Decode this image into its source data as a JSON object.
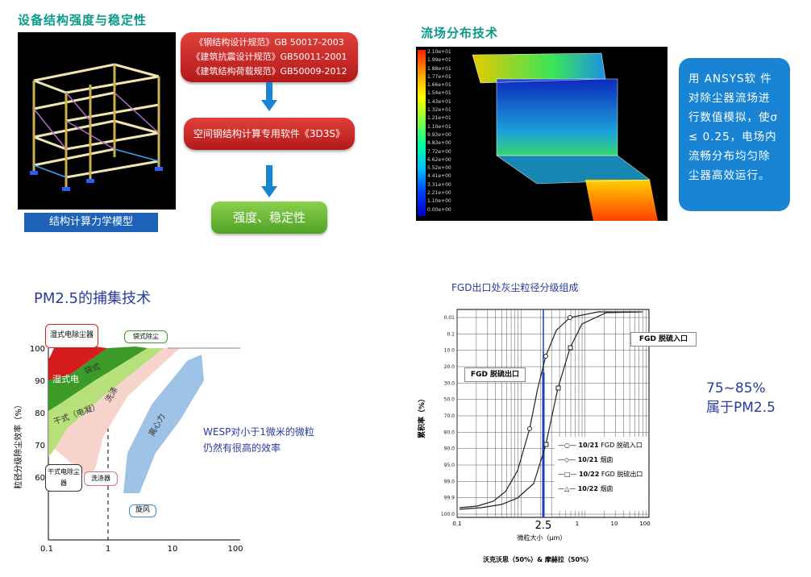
{
  "structure": {
    "title": "设备结构强度与稳定性",
    "model_caption": "结构计算力学模型",
    "codes": [
      "《钢结构设计规范》GB 50017-2003",
      "《建筑抗震设计规范》GB50011-2001",
      "《建筑结构荷载规范》GB50009-2012"
    ],
    "software": "空间钢结构计算专用软件《3D3S》",
    "result": "强度、稳定性"
  },
  "flow": {
    "title": "流场分布技术",
    "description": "用 ANSYS软 件对除尘器流场进行数值模拟，使σ ≤ 0.25，电场内流畅分布均匀除尘器高效运行。",
    "colorbar": [
      "2.10e+01",
      "1.99e+01",
      "1.88e+01",
      "1.77e+01",
      "1.66e+01",
      "1.54e+01",
      "1.43e+01",
      "1.32e+01",
      "1.21e+01",
      "1.10e+01",
      "9.93e+00",
      "8.83e+00",
      "7.72e+00",
      "6.62e+00",
      "5.52e+00",
      "4.41e+00",
      "3.31e+00",
      "2.21e+00",
      "1.10e+00",
      "0.00e+00"
    ]
  },
  "pm": {
    "title": "PM2.5的捕集技术",
    "ylabel": "粒径分级除尘效率（%）",
    "yticks": [
      "100",
      "90",
      "80",
      "70",
      "60"
    ],
    "xticks": [
      "0.1",
      "1",
      "10",
      "100"
    ],
    "labels": {
      "wet_esp": "湿式电除尘器",
      "bag": "袋式除尘",
      "dry_esp": "干式电除尘器",
      "scrubber": "洗涤器",
      "cyclone": "旋风",
      "c_wet": "湿式电",
      "c_bag": "袋式",
      "c_dry": "干式（电凝）",
      "c_wash": "洗涤",
      "c_cent": "离心力"
    },
    "note_line1": "WESP对小于1微米的微粒",
    "note_line2": "仍然有很高的效率"
  },
  "fgd": {
    "title": "FGD出口处灰尘粒径分级组成",
    "ylabel": "累积率（%）",
    "yticks": [
      "0.01",
      "0.1",
      "10.0",
      "20.0",
      "30.0",
      "50.0",
      "70.0",
      "80.0",
      "90.0",
      "95.0",
      "99.0",
      "99.9",
      "100.0"
    ],
    "xticks": [
      "0.1",
      "1",
      "10",
      "100"
    ],
    "xlabel": "微粒大小（μm）",
    "x_marker": "2.5",
    "footer": "沃克沃思（50%）& 摩赫拉（50%）",
    "callout_inlet": "FGD 脱硫入口",
    "callout_outlet": "FGD 脱硫出口",
    "legend": [
      {
        "marker": "—○—",
        "date": "10/21",
        "label": "FGD 脱硫入口"
      },
      {
        "marker": "—◇—",
        "date": "10/21",
        "label": "烟囱"
      },
      {
        "marker": "—□—",
        "date": "10/22",
        "label": "FGD 脱硫出口"
      },
      {
        "marker": "—△—",
        "date": "10/22",
        "label": "烟囱"
      }
    ],
    "result_line1": "75~85%",
    "result_line2": "属于PM2.5"
  }
}
